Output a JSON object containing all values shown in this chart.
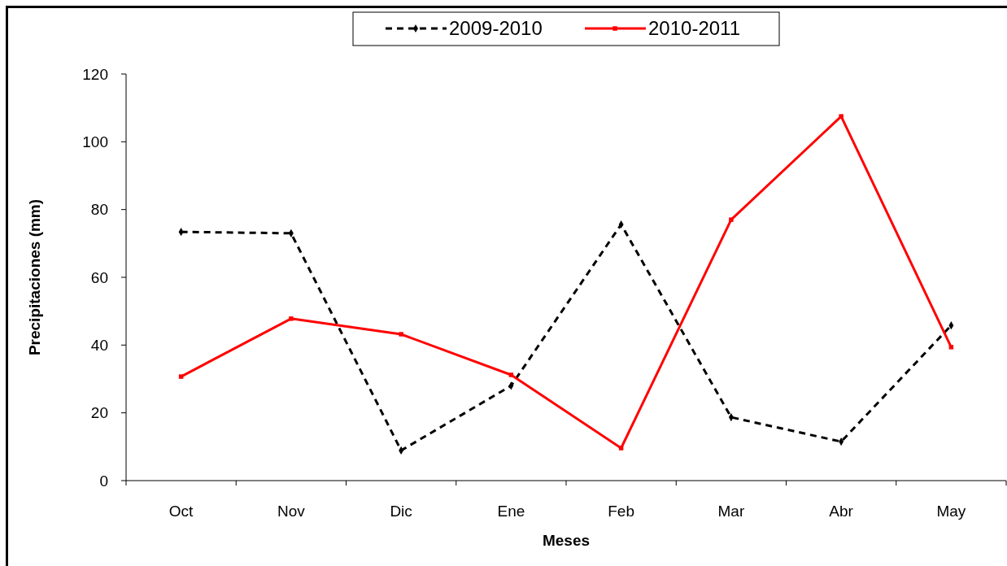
{
  "chart_data": {
    "type": "line",
    "xlabel": "Meses",
    "ylabel": "Precipitaciones (mm)",
    "categories": [
      "Oct",
      "Nov",
      "Dic",
      "Ene",
      "Feb",
      "Mar",
      "Abr",
      "May"
    ],
    "ylim": [
      0,
      120
    ],
    "yticks": [
      0,
      20,
      40,
      60,
      80,
      100,
      120
    ],
    "grid": false,
    "legend": "top",
    "series": [
      {
        "name": "2009-2010",
        "color": "#000000",
        "line_style": "dashed",
        "marker": "diamond",
        "values": [
          73.4,
          73,
          8.9,
          28,
          75.6,
          18.7,
          11.5,
          45.8
        ]
      },
      {
        "name": "2010-2011",
        "color": "#ff0000",
        "line_style": "solid",
        "marker": "square",
        "values": [
          30.7,
          47.8,
          43.2,
          31.2,
          9.6,
          77,
          107.5,
          39.4
        ]
      }
    ]
  }
}
